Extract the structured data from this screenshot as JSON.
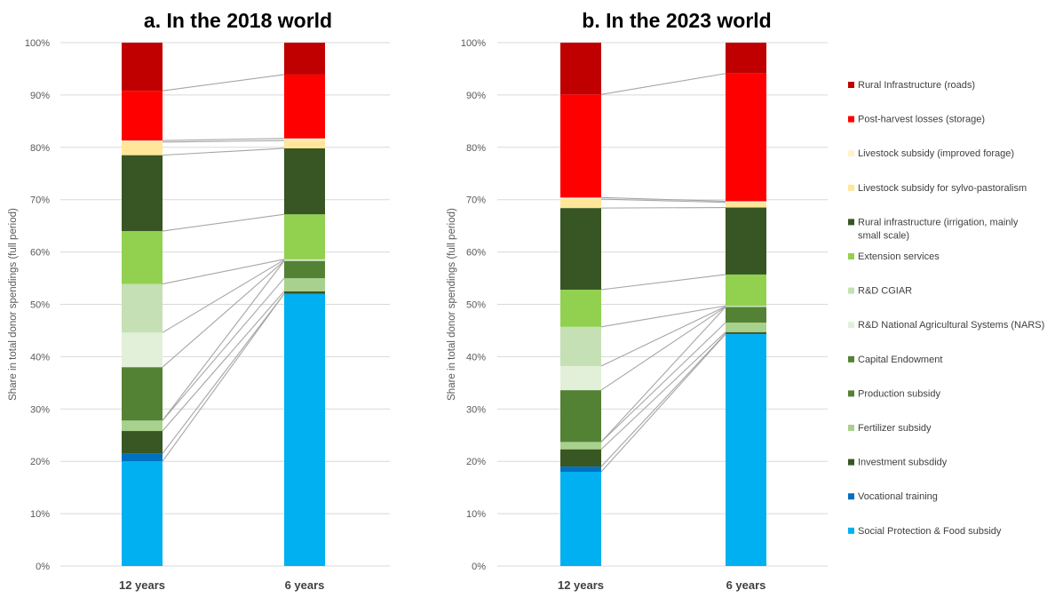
{
  "colors": {
    "Social Protection & Food subsidy": "#00b0f0",
    "Vocational training": "#0070c0",
    "Investment subsdidy": "#385723",
    "Fertilizer subsidy": "#a9d18e",
    "Production subsidy": "#548235",
    "Capital Endowment": "#548235",
    "R&D National Agricultural Systems (NARS)": "#e2f0d9",
    "R&D CGIAR": "#c5e0b4",
    "Extension services": "#92d050",
    "Rural infrastructure (irrigation, mainly small scale)": "#375623",
    "Livestock subsidy for sylvo-pastoralism": "#ffe699",
    "Livestock subsidy (improved forage)": "#fff2cc",
    "Post-harvest losses (storage)": "#ff0000",
    "Rural Infrastructure (roads)": "#c00000"
  },
  "legend": [
    {
      "label": "Rural Infrastructure (roads)",
      "lines": [
        "Rural Infrastructure (roads)"
      ]
    },
    {
      "label": "Post-harvest losses (storage)",
      "lines": [
        "Post-harvest losses (storage)"
      ]
    },
    {
      "label": "Livestock subsidy (improved forage)",
      "lines": [
        "Livestock subsidy (improved forage)"
      ]
    },
    {
      "label": "Livestock subsidy for sylvo-pastoralism",
      "lines": [
        "Livestock subsidy for sylvo-pastoralism"
      ]
    },
    {
      "label": "Rural infrastructure (irrigation, mainly small scale)",
      "lines": [
        "Rural infrastructure (irrigation, mainly",
        "small scale)"
      ]
    },
    {
      "label": "Extension services",
      "lines": [
        "Extension services"
      ]
    },
    {
      "label": "R&D CGIAR",
      "lines": [
        "R&D CGIAR"
      ]
    },
    {
      "label": "R&D National Agricultural Systems (NARS)",
      "lines": [
        "R&D National Agricultural Systems (NARS)"
      ]
    },
    {
      "label": "Capital Endowment",
      "lines": [
        "Capital Endowment"
      ]
    },
    {
      "label": "Production subsidy",
      "lines": [
        "Production subsidy"
      ]
    },
    {
      "label": "Fertilizer subsidy",
      "lines": [
        "Fertilizer subsidy"
      ]
    },
    {
      "label": "Investment subsdidy",
      "lines": [
        "Investment subsdidy"
      ]
    },
    {
      "label": "Vocational training",
      "lines": [
        "Vocational training"
      ]
    },
    {
      "label": "Social Protection & Food subsidy",
      "lines": [
        "Social Protection & Food subsidy"
      ]
    }
  ],
  "chart_data": [
    {
      "type": "bar",
      "stacked": true,
      "title": "a. In the 2018 world",
      "ylabel": "Share in total donor spendings (full period)",
      "xlabel": "",
      "ylim": [
        0,
        100
      ],
      "yticks": [
        "0%",
        "10%",
        "20%",
        "30%",
        "40%",
        "50%",
        "60%",
        "70%",
        "80%",
        "90%",
        "100%"
      ],
      "categories": [
        "12 years",
        "6 years"
      ],
      "series": [
        {
          "name": "Social Protection & Food subsidy",
          "values": [
            20.0,
            52.0
          ]
        },
        {
          "name": "Vocational training",
          "values": [
            1.5,
            0.0
          ]
        },
        {
          "name": "Investment subsdidy",
          "values": [
            4.3,
            0.5
          ]
        },
        {
          "name": "Fertilizer subsidy",
          "values": [
            2.0,
            2.5
          ]
        },
        {
          "name": "Production subsidy",
          "values": [
            0.0,
            3.3
          ]
        },
        {
          "name": "Capital Endowment",
          "values": [
            10.2,
            0.0
          ]
        },
        {
          "name": "R&D National Agricultural Systems (NARS)",
          "values": [
            6.6,
            0.2
          ]
        },
        {
          "name": "R&D CGIAR",
          "values": [
            9.3,
            0.1
          ]
        },
        {
          "name": "Extension services",
          "values": [
            10.1,
            8.6
          ]
        },
        {
          "name": "Rural infrastructure (irrigation, mainly small scale)",
          "values": [
            14.5,
            12.6
          ]
        },
        {
          "name": "Livestock subsidy for sylvo-pastoralism",
          "values": [
            2.5,
            1.5
          ]
        },
        {
          "name": "Livestock subsidy (improved forage)",
          "values": [
            0.3,
            0.4
          ]
        },
        {
          "name": "Post-harvest losses (storage)",
          "values": [
            9.5,
            12.2
          ]
        },
        {
          "name": "Rural Infrastructure (roads)",
          "values": [
            9.2,
            6.1
          ]
        }
      ]
    },
    {
      "type": "bar",
      "stacked": true,
      "title": "b. In the 2023 world",
      "ylabel": "Share in total donor spendings (full period)",
      "xlabel": "",
      "ylim": [
        0,
        100
      ],
      "yticks": [
        "0%",
        "10%",
        "20%",
        "30%",
        "40%",
        "50%",
        "60%",
        "70%",
        "80%",
        "90%",
        "100%"
      ],
      "categories": [
        "12 years",
        "6 years"
      ],
      "series": [
        {
          "name": "Social Protection & Food subsidy",
          "values": [
            18.0,
            44.3
          ]
        },
        {
          "name": "Vocational training",
          "values": [
            1.0,
            0.1
          ]
        },
        {
          "name": "Investment subsdidy",
          "values": [
            3.3,
            0.3
          ]
        },
        {
          "name": "Fertilizer subsidy",
          "values": [
            1.4,
            1.8
          ]
        },
        {
          "name": "Production subsidy",
          "values": [
            0.0,
            3.0
          ]
        },
        {
          "name": "Capital Endowment",
          "values": [
            9.9,
            0.0
          ]
        },
        {
          "name": "R&D National Agricultural Systems (NARS)",
          "values": [
            4.6,
            0.1
          ]
        },
        {
          "name": "R&D CGIAR",
          "values": [
            7.5,
            0.1
          ]
        },
        {
          "name": "Extension services",
          "values": [
            7.1,
            6.0
          ]
        },
        {
          "name": "Rural infrastructure (irrigation, mainly small scale)",
          "values": [
            15.6,
            12.8
          ]
        },
        {
          "name": "Livestock subsidy for sylvo-pastoralism",
          "values": [
            1.7,
            1.0
          ]
        },
        {
          "name": "Livestock subsidy (improved forage)",
          "values": [
            0.3,
            0.2
          ]
        },
        {
          "name": "Post-harvest losses (storage)",
          "values": [
            19.7,
            24.4
          ]
        },
        {
          "name": "Rural Infrastructure (roads)",
          "values": [
            9.9,
            5.9
          ]
        }
      ]
    }
  ]
}
